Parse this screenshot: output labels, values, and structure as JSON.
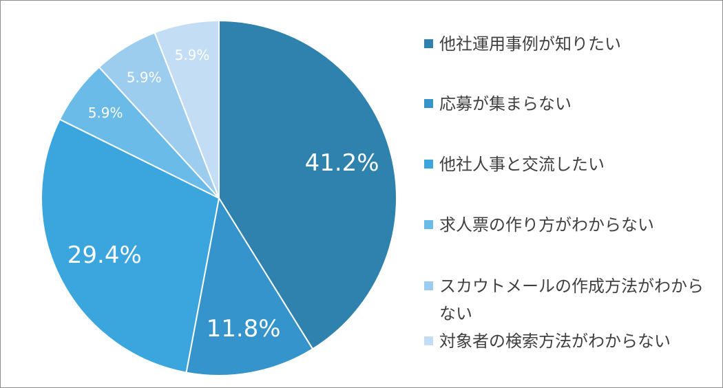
{
  "chart_data": {
    "type": "pie",
    "title": "",
    "start_angle_deg": 0,
    "direction": "clockwise",
    "slices": [
      {
        "label": "他社運用事例が知りたい",
        "value": 41.2,
        "display": "41.2%",
        "color": "#2e82ad"
      },
      {
        "label": "応募が集まらない",
        "value": 11.8,
        "display": "11.8%",
        "color": "#3594cb"
      },
      {
        "label": "他社人事と交流したい",
        "value": 29.4,
        "display": "29.4%",
        "color": "#3ba6de"
      },
      {
        "label": "求人票の作り方がわからない",
        "value": 5.9,
        "display": "5.9%",
        "color": "#6bbbe8"
      },
      {
        "label": "スカウトメールの作成方法がわからない",
        "value": 5.9,
        "display": "5.9%",
        "color": "#9dcdee"
      },
      {
        "label": "対象者の検索方法がわからない",
        "value": 5.9,
        "display": "5.9%",
        "color": "#c3def4"
      }
    ],
    "legend_position": "right"
  }
}
